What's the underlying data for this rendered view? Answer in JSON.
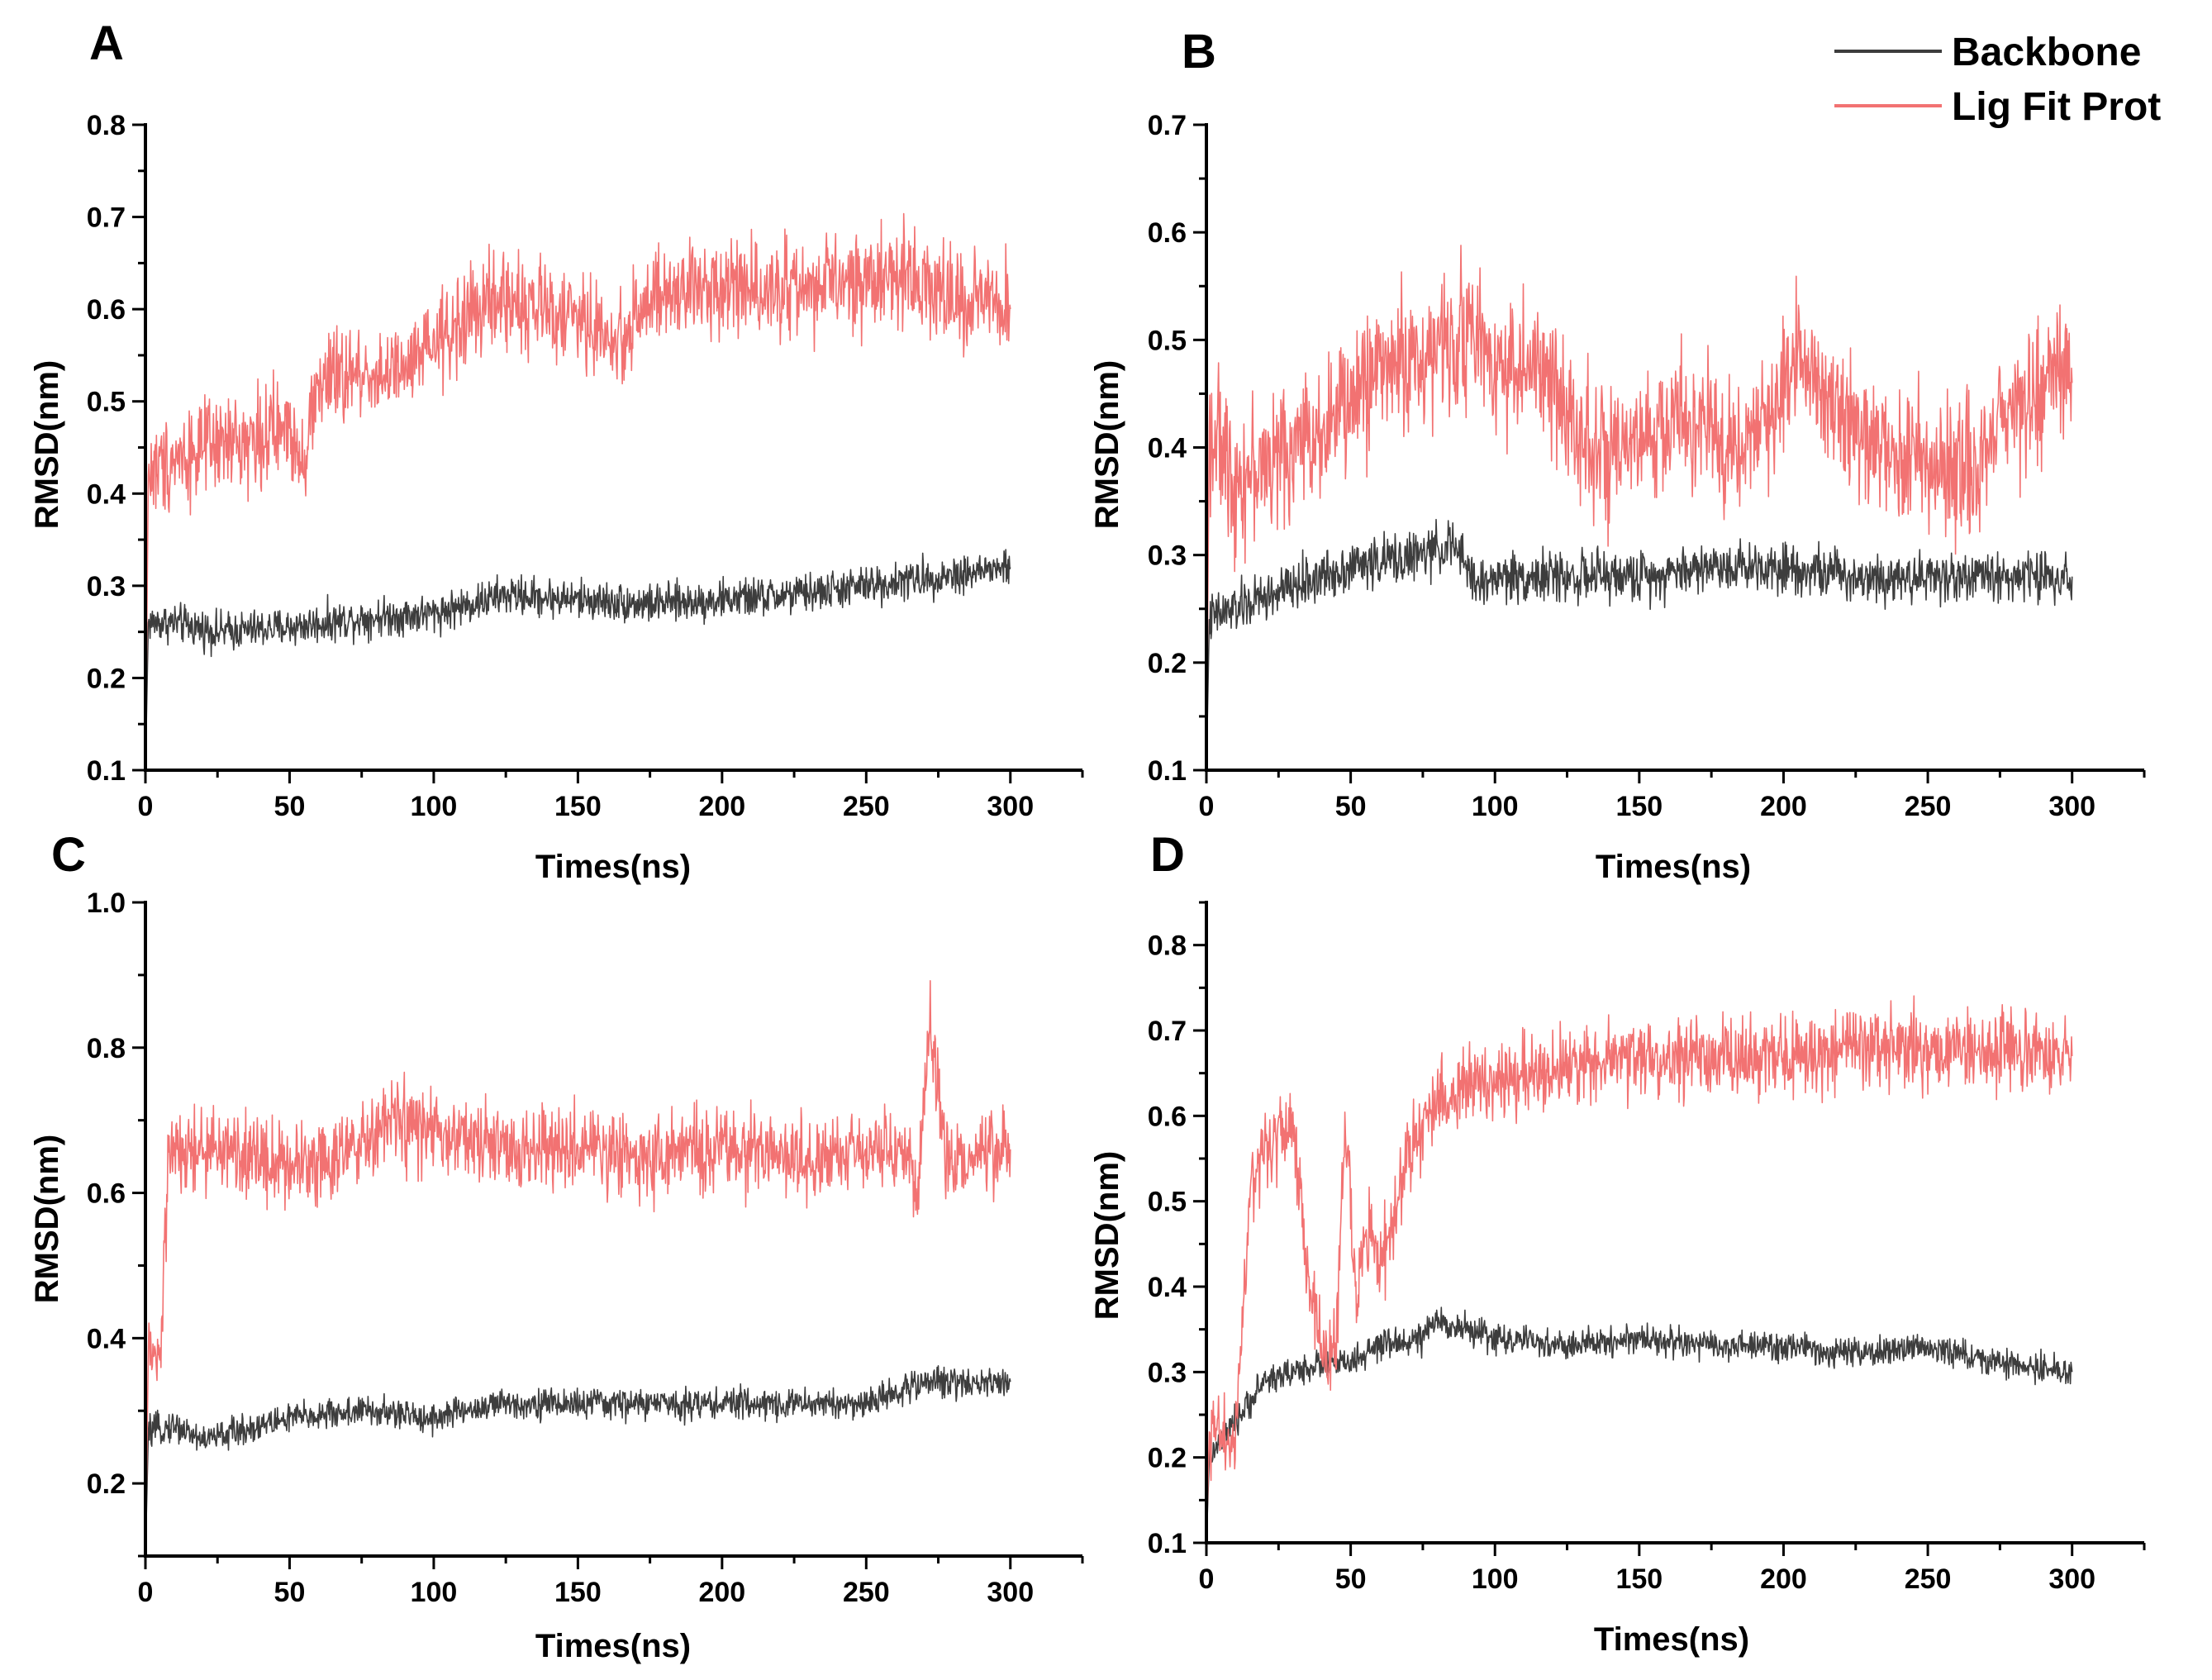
{
  "legend": {
    "entries": [
      {
        "name": "Backbone",
        "color": "#3d3d3d"
      },
      {
        "name": "Lig Fit Prot",
        "color": "#f27272"
      }
    ]
  },
  "chart_data": [
    {
      "panel": "A",
      "type": "line",
      "xlabel": "Times(ns)",
      "ylabel": "RMSD(nm)",
      "xlim": [
        0,
        325
      ],
      "ylim": [
        0.1,
        0.8
      ],
      "xticks": [
        "0",
        "50",
        "100",
        "150",
        "200",
        "250",
        "300"
      ],
      "yticks": [
        "0.1",
        "0.2",
        "0.3",
        "0.4",
        "0.5",
        "0.6",
        "0.7",
        "0.8"
      ],
      "series": [
        {
          "name": "Backbone",
          "color": "#3d3d3d",
          "noise": 0.018,
          "points": [
            [
              0,
              0.1
            ],
            [
              1,
              0.26
            ],
            [
              10,
              0.26
            ],
            [
              25,
              0.25
            ],
            [
              50,
              0.255
            ],
            [
              75,
              0.265
            ],
            [
              100,
              0.27
            ],
            [
              125,
              0.29
            ],
            [
              150,
              0.285
            ],
            [
              175,
              0.28
            ],
            [
              200,
              0.285
            ],
            [
              225,
              0.29
            ],
            [
              250,
              0.3
            ],
            [
              275,
              0.31
            ],
            [
              300,
              0.32
            ]
          ]
        },
        {
          "name": "Lig Fit Prot",
          "color": "#f27272",
          "noise": 0.045,
          "points": [
            [
              0,
              0.1
            ],
            [
              1,
              0.42
            ],
            [
              10,
              0.44
            ],
            [
              25,
              0.45
            ],
            [
              50,
              0.47
            ],
            [
              55,
              0.44
            ],
            [
              60,
              0.52
            ],
            [
              75,
              0.53
            ],
            [
              90,
              0.53
            ],
            [
              100,
              0.56
            ],
            [
              115,
              0.6
            ],
            [
              125,
              0.61
            ],
            [
              150,
              0.59
            ],
            [
              165,
              0.56
            ],
            [
              170,
              0.6
            ],
            [
              190,
              0.62
            ],
            [
              200,
              0.63
            ],
            [
              225,
              0.62
            ],
            [
              250,
              0.63
            ],
            [
              265,
              0.64
            ],
            [
              280,
              0.61
            ],
            [
              300,
              0.6
            ]
          ]
        }
      ]
    },
    {
      "panel": "B",
      "type": "line",
      "xlabel": "Times(ns)",
      "ylabel": "RMSD(nm)",
      "xlim": [
        0,
        325
      ],
      "ylim": [
        0.1,
        0.7
      ],
      "xticks": [
        "0",
        "50",
        "100",
        "150",
        "200",
        "250",
        "300"
      ],
      "yticks": [
        "0.1",
        "0.2",
        "0.3",
        "0.4",
        "0.5",
        "0.6",
        "0.7"
      ],
      "series": [
        {
          "name": "Backbone",
          "color": "#3d3d3d",
          "noise": 0.02,
          "points": [
            [
              0,
              0.1
            ],
            [
              1,
              0.24
            ],
            [
              10,
              0.25
            ],
            [
              30,
              0.27
            ],
            [
              50,
              0.29
            ],
            [
              75,
              0.3
            ],
            [
              85,
              0.31
            ],
            [
              95,
              0.27
            ],
            [
              100,
              0.28
            ],
            [
              125,
              0.28
            ],
            [
              150,
              0.28
            ],
            [
              175,
              0.29
            ],
            [
              200,
              0.29
            ],
            [
              225,
              0.28
            ],
            [
              250,
              0.28
            ],
            [
              275,
              0.28
            ],
            [
              300,
              0.28
            ]
          ]
        },
        {
          "name": "Lig Fit Prot",
          "color": "#f27272",
          "noise": 0.055,
          "points": [
            [
              0,
              0.1
            ],
            [
              1,
              0.42
            ],
            [
              10,
              0.37
            ],
            [
              25,
              0.39
            ],
            [
              40,
              0.42
            ],
            [
              50,
              0.44
            ],
            [
              60,
              0.48
            ],
            [
              75,
              0.48
            ],
            [
              90,
              0.51
            ],
            [
              100,
              0.48
            ],
            [
              115,
              0.47
            ],
            [
              130,
              0.42
            ],
            [
              140,
              0.38
            ],
            [
              150,
              0.4
            ],
            [
              165,
              0.43
            ],
            [
              180,
              0.4
            ],
            [
              195,
              0.42
            ],
            [
              205,
              0.5
            ],
            [
              215,
              0.45
            ],
            [
              230,
              0.4
            ],
            [
              250,
              0.39
            ],
            [
              265,
              0.37
            ],
            [
              275,
              0.43
            ],
            [
              290,
              0.46
            ],
            [
              300,
              0.46
            ]
          ]
        }
      ]
    },
    {
      "panel": "C",
      "type": "line",
      "xlabel": "Times(ns)",
      "ylabel": "RMSD(nm)",
      "xlim": [
        0,
        325
      ],
      "ylim": [
        0.1,
        1.0
      ],
      "xticks": [
        "0",
        "50",
        "100",
        "150",
        "200",
        "250",
        "300"
      ],
      "yticks": [
        "0.2",
        "0.4",
        "0.6",
        "0.8",
        "1.0"
      ],
      "series": [
        {
          "name": "Backbone",
          "color": "#3d3d3d",
          "noise": 0.018,
          "points": [
            [
              0,
              0.1
            ],
            [
              1,
              0.27
            ],
            [
              10,
              0.28
            ],
            [
              20,
              0.26
            ],
            [
              30,
              0.27
            ],
            [
              50,
              0.29
            ],
            [
              75,
              0.3
            ],
            [
              100,
              0.29
            ],
            [
              110,
              0.3
            ],
            [
              125,
              0.31
            ],
            [
              150,
              0.31
            ],
            [
              175,
              0.31
            ],
            [
              200,
              0.31
            ],
            [
              225,
              0.31
            ],
            [
              250,
              0.31
            ],
            [
              270,
              0.34
            ],
            [
              300,
              0.34
            ]
          ]
        },
        {
          "name": "Lig Fit Prot",
          "color": "#f27272",
          "noise": 0.05,
          "points": [
            [
              0,
              0.1
            ],
            [
              1,
              0.38
            ],
            [
              5,
              0.36
            ],
            [
              8,
              0.65
            ],
            [
              25,
              0.66
            ],
            [
              50,
              0.64
            ],
            [
              75,
              0.66
            ],
            [
              85,
              0.7
            ],
            [
              100,
              0.68
            ],
            [
              125,
              0.66
            ],
            [
              150,
              0.66
            ],
            [
              175,
              0.65
            ],
            [
              200,
              0.66
            ],
            [
              225,
              0.65
            ],
            [
              250,
              0.66
            ],
            [
              262,
              0.66
            ],
            [
              268,
              0.6
            ],
            [
              272,
              0.84
            ],
            [
              278,
              0.64
            ],
            [
              300,
              0.66
            ]
          ]
        }
      ]
    },
    {
      "panel": "D",
      "type": "line",
      "xlabel": "Times(ns)",
      "ylabel": "RMSD(nm)",
      "xlim": [
        0,
        325
      ],
      "ylim": [
        0.1,
        0.85
      ],
      "xticks": [
        "0",
        "50",
        "100",
        "150",
        "200",
        "250",
        "300"
      ],
      "yticks": [
        "0.1",
        "0.2",
        "0.3",
        "0.4",
        "0.5",
        "0.6",
        "0.7",
        "0.8"
      ],
      "series": [
        {
          "name": "Backbone",
          "color": "#3d3d3d",
          "noise": 0.015,
          "points": [
            [
              0,
              0.1
            ],
            [
              1,
              0.2
            ],
            [
              10,
              0.24
            ],
            [
              20,
              0.29
            ],
            [
              40,
              0.31
            ],
            [
              50,
              0.31
            ],
            [
              60,
              0.33
            ],
            [
              75,
              0.34
            ],
            [
              80,
              0.36
            ],
            [
              100,
              0.34
            ],
            [
              125,
              0.33
            ],
            [
              150,
              0.34
            ],
            [
              175,
              0.33
            ],
            [
              200,
              0.33
            ],
            [
              225,
              0.32
            ],
            [
              250,
              0.33
            ],
            [
              275,
              0.31
            ],
            [
              300,
              0.3
            ]
          ]
        },
        {
          "name": "Lig Fit Prot",
          "color": "#f27272",
          "noise": 0.04,
          "points": [
            [
              0,
              0.1
            ],
            [
              1,
              0.23
            ],
            [
              10,
              0.22
            ],
            [
              15,
              0.5
            ],
            [
              20,
              0.56
            ],
            [
              30,
              0.59
            ],
            [
              35,
              0.42
            ],
            [
              40,
              0.32
            ],
            [
              45,
              0.33
            ],
            [
              48,
              0.6
            ],
            [
              52,
              0.38
            ],
            [
              55,
              0.46
            ],
            [
              62,
              0.44
            ],
            [
              70,
              0.55
            ],
            [
              75,
              0.6
            ],
            [
              85,
              0.63
            ],
            [
              100,
              0.64
            ],
            [
              125,
              0.66
            ],
            [
              150,
              0.67
            ],
            [
              175,
              0.67
            ],
            [
              200,
              0.67
            ],
            [
              225,
              0.68
            ],
            [
              250,
              0.68
            ],
            [
              275,
              0.68
            ],
            [
              300,
              0.67
            ]
          ]
        }
      ]
    }
  ]
}
